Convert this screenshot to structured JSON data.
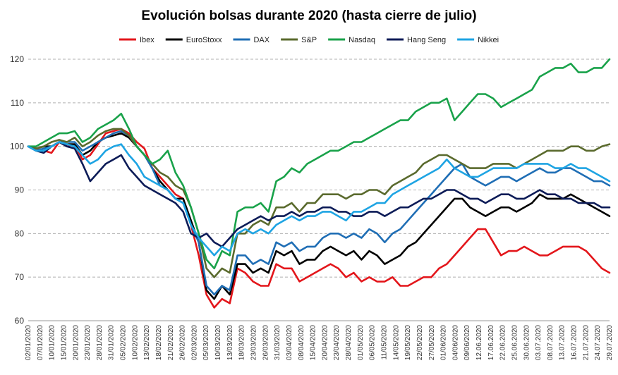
{
  "chart_data": {
    "type": "line",
    "title": "Evolución bolsas durante 2020 (hasta cierre de julio)",
    "xlabel": "",
    "ylabel": "",
    "ylim": [
      60,
      120
    ],
    "yticks": [
      60,
      70,
      80,
      90,
      100,
      110,
      120
    ],
    "grid": true,
    "legend_position": "top",
    "x_tick_labels": [
      "02/01/2020",
      "07/01/2020",
      "10/01/2020",
      "15/01/2020",
      "20/01/2020",
      "23/01/2020",
      "28/01/2020",
      "31/01/2020",
      "05/02/2020",
      "10/02/2020",
      "13/02/2020",
      "18/02/2020",
      "21/02/2020",
      "26/02/2020",
      "02/03/2020",
      "05/03/2020",
      "10/03/2020",
      "13/03/2020",
      "18/03/2020",
      "23/03/2020",
      "26/03/2020",
      "31/03/2020",
      "03/04/2020",
      "08/04/2020",
      "15/04/2020",
      "20/04/2020",
      "23/04/2020",
      "28/04/2020",
      "01/05/2020",
      "06/05/2020",
      "11/05/2020",
      "14/05/2020",
      "19/05/2020",
      "22/05/2020",
      "27/05/2020",
      "01/06/2020",
      "04/06/2020",
      "09/06/2020",
      "12.06.2020",
      "17.06.2020",
      "22.06.2020",
      "25.06.2020",
      "30.06.2020",
      "03.07.2020",
      "08.07.2020",
      "13.07.2020",
      "16.07.2020",
      "21.07.2020",
      "24.07.2020",
      "29.07.2020"
    ],
    "series": [
      {
        "name": "Ibex",
        "color": "#e3161b",
        "values": [
          100,
          99.5,
          99,
          98.5,
          101,
          100,
          100.5,
          97,
          98,
          100.5,
          103,
          103.5,
          104,
          103,
          101,
          99.5,
          95,
          93,
          91,
          89,
          88,
          82,
          75,
          66,
          63,
          65,
          64,
          72,
          71,
          69,
          68,
          68,
          73,
          72,
          72,
          69,
          70,
          71,
          72,
          73,
          72,
          70,
          71,
          69,
          70,
          69,
          69,
          70,
          68,
          68,
          69,
          70,
          70,
          72,
          73,
          75,
          77,
          79,
          81,
          81,
          78,
          75,
          76,
          76,
          77,
          76,
          75,
          75,
          76,
          77,
          77,
          77,
          76,
          74,
          72,
          71
        ]
      },
      {
        "name": "EuroStoxx",
        "color": "#000000",
        "values": [
          100,
          99.5,
          100,
          100,
          101,
          100.5,
          100.5,
          98,
          99,
          101,
          102,
          102.5,
          103,
          102,
          100,
          98,
          95,
          92,
          90,
          88,
          88,
          83,
          78,
          67,
          65,
          68,
          66,
          73,
          73,
          71,
          72,
          71,
          76,
          75,
          76,
          73,
          74,
          74,
          76,
          77,
          76,
          75,
          76,
          74,
          76,
          75,
          73,
          74,
          75,
          77,
          78,
          80,
          82,
          84,
          86,
          88,
          88,
          86,
          85,
          84,
          85,
          86,
          86,
          85,
          86,
          87,
          89,
          88,
          88,
          88,
          89,
          88,
          87,
          86,
          85,
          84
        ]
      },
      {
        "name": "DAX",
        "color": "#1f6eb5",
        "values": [
          100,
          99,
          99.5,
          100,
          101,
          101,
          101,
          99,
          100,
          101,
          102,
          103,
          103.5,
          102.5,
          100,
          98,
          95,
          91,
          90,
          88,
          87,
          82,
          78,
          68,
          66,
          68,
          67,
          75,
          75,
          73,
          74,
          73,
          78,
          77,
          78,
          76,
          77,
          77,
          79,
          80,
          80,
          79,
          80,
          79,
          81,
          80,
          78,
          80,
          81,
          83,
          85,
          87,
          89,
          91,
          93,
          95,
          96,
          93,
          92,
          91,
          92,
          93,
          93,
          92,
          93,
          94,
          95,
          94,
          94,
          95,
          95,
          94,
          93,
          92,
          92,
          91
        ]
      },
      {
        "name": "S&P",
        "color": "#5a6a2d",
        "values": [
          100,
          99.5,
          100,
          101,
          101.5,
          101,
          102,
          100,
          101,
          102.5,
          103.5,
          104,
          104,
          102.5,
          100,
          98,
          96,
          94,
          93,
          91,
          90,
          86,
          80,
          72,
          70,
          72,
          71,
          80,
          80,
          82,
          83,
          82,
          86,
          86,
          87,
          85,
          87,
          87,
          89,
          89,
          89,
          88,
          89,
          89,
          90,
          90,
          89,
          91,
          92,
          93,
          94,
          96,
          97,
          98,
          98,
          97,
          96,
          95,
          95,
          95,
          96,
          96,
          96,
          95,
          96,
          97,
          98,
          99,
          99,
          99,
          100,
          100,
          99,
          99,
          100,
          100.5
        ]
      },
      {
        "name": "Nasdaq",
        "color": "#19a24a",
        "values": [
          100,
          100,
          101,
          102,
          103,
          103,
          103.5,
          101,
          102,
          104,
          105,
          106,
          107.5,
          104,
          100,
          98,
          96,
          97,
          99,
          94,
          91,
          86,
          80,
          74,
          72,
          76,
          75,
          85,
          86,
          86,
          87,
          85,
          92,
          93,
          95,
          94,
          96,
          97,
          98,
          99,
          99,
          100,
          101,
          101,
          102,
          103,
          104,
          105,
          106,
          106,
          108,
          109,
          110,
          110,
          111,
          106,
          108,
          110,
          112,
          112,
          111,
          109,
          110,
          111,
          112,
          113,
          116,
          117,
          118,
          118,
          119,
          117,
          117,
          118,
          118,
          120
        ]
      },
      {
        "name": "Hang Seng",
        "color": "#0c1b57",
        "values": [
          100,
          99,
          98.5,
          100,
          101,
          100,
          99.5,
          96,
          92,
          94,
          96,
          97,
          98,
          95,
          93,
          91,
          90,
          89,
          88,
          87,
          85,
          80,
          79,
          80,
          78,
          77,
          79,
          81,
          82,
          83,
          84,
          83,
          84,
          84,
          85,
          84,
          85,
          85,
          86,
          86,
          85,
          85,
          84,
          84,
          85,
          85,
          84,
          85,
          86,
          86,
          87,
          88,
          88,
          89,
          90,
          90,
          89,
          88,
          88,
          87,
          88,
          89,
          89,
          88,
          88,
          89,
          90,
          89,
          89,
          88,
          88,
          87,
          87,
          87,
          86,
          86
        ]
      },
      {
        "name": "Nikkei",
        "color": "#1ea4e3",
        "values": [
          100,
          99,
          99,
          100,
          101,
          100.5,
          100,
          98,
          96,
          97,
          99,
          100,
          100.5,
          98,
          96,
          93,
          92,
          91,
          90,
          88,
          87,
          82,
          79,
          77,
          75,
          77,
          76,
          80,
          81,
          80,
          81,
          80,
          82,
          83,
          84,
          83,
          84,
          84,
          85,
          85,
          84,
          83,
          85,
          85,
          86,
          87,
          87,
          89,
          90,
          91,
          92,
          93,
          94,
          95,
          97,
          95,
          94,
          93,
          93,
          94,
          95,
          95,
          95,
          95,
          96,
          96,
          96,
          96,
          95,
          95,
          96,
          95,
          95,
          94,
          93,
          92
        ]
      }
    ]
  }
}
